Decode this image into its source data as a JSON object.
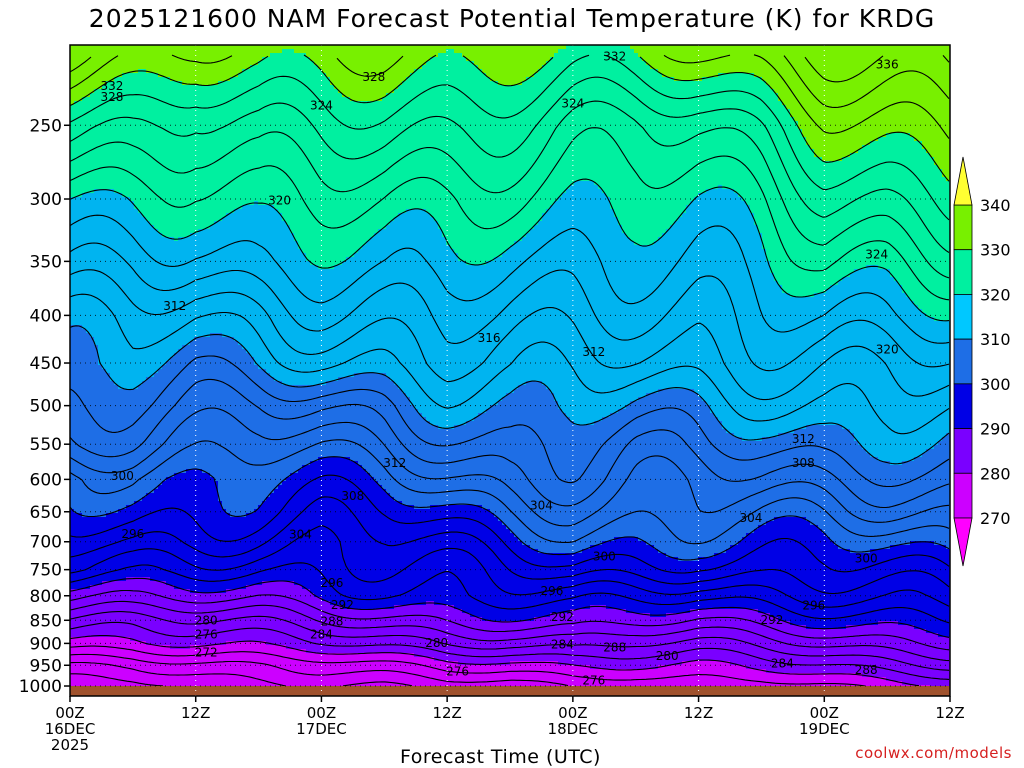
{
  "chart_data": {
    "type": "heatmap",
    "title": "2025121600 NAM Forecast Potential Temperature (K) for KRDG",
    "xlabel": "Forecast Time (UTC)",
    "ylabel": "",
    "credit": "coolwx.com/models",
    "x_ticks": [
      {
        "hour": 0,
        "lines": [
          "00Z",
          "16DEC",
          "2025"
        ]
      },
      {
        "hour": 12,
        "lines": [
          "12Z"
        ]
      },
      {
        "hour": 24,
        "lines": [
          "00Z",
          "17DEC"
        ]
      },
      {
        "hour": 36,
        "lines": [
          "12Z"
        ]
      },
      {
        "hour": 48,
        "lines": [
          "00Z",
          "18DEC"
        ]
      },
      {
        "hour": 60,
        "lines": [
          "12Z"
        ]
      },
      {
        "hour": 72,
        "lines": [
          "00Z",
          "19DEC"
        ]
      },
      {
        "hour": 84,
        "lines": [
          "12Z"
        ]
      }
    ],
    "xlim": [
      0,
      84
    ],
    "y_ticks": [
      250,
      300,
      350,
      400,
      450,
      500,
      550,
      600,
      650,
      700,
      750,
      800,
      850,
      900,
      950,
      1000
    ],
    "ylim": [
      1025,
      200
    ],
    "yscale": "log",
    "ytop_display": 205,
    "surface_pressure": 1000,
    "colorbar": {
      "levels": [
        270,
        280,
        290,
        300,
        310,
        320,
        330,
        340
      ],
      "colors": [
        "#ff00ff",
        "#c800ff",
        "#7800ff",
        "#0000e6",
        "#0a5ad2",
        "#00aaff",
        "#00c8e6",
        "#00eeaa",
        "#00ffaa",
        "#55ff55",
        "#b4ff00",
        "#ffff32"
      ],
      "bands": [
        {
          "from": 0,
          "to": 270,
          "color": "#ff00ff"
        },
        {
          "from": 270,
          "to": 280,
          "color": "#c800ff"
        },
        {
          "from": 280,
          "to": 290,
          "color": "#8000ff"
        },
        {
          "from": 290,
          "to": 300,
          "color": "#0000e6"
        },
        {
          "from": 300,
          "to": 310,
          "color": "#0a5ad2"
        },
        {
          "from": 310,
          "to": 320,
          "color": "#008cff"
        },
        {
          "from": 320,
          "to": 330,
          "color": "#00c8ff"
        },
        {
          "from": 330,
          "to": 340,
          "color": "#00ffaa"
        },
        {
          "from": 340,
          "to": 999,
          "color": "#78ff00"
        }
      ],
      "label_levels": [
        270,
        280,
        290,
        300,
        310,
        320,
        330,
        340
      ],
      "label_colors": [
        "#ff00ff",
        "#c800ff",
        "#8000ff",
        "#0000e6",
        "#0a5ad2",
        "#00aaff",
        "#00eeaa",
        "#78ff00",
        "#ffff32"
      ]
    },
    "surface_color": "#a0522d",
    "fill_bands": [
      {
        "theta": 270,
        "color": "#ff00ff"
      },
      {
        "theta": 280,
        "color": "#cc00ff"
      },
      {
        "theta": 290,
        "color": "#7a00ff"
      },
      {
        "theta": 300,
        "color": "#0000e6"
      },
      {
        "theta": 310,
        "color": "#1e6ee6"
      },
      {
        "theta": 320,
        "color": "#00b4f0"
      },
      {
        "theta": 330,
        "color": "#00f0a0"
      },
      {
        "theta": 340,
        "color": "#78f000"
      },
      {
        "theta": 999,
        "color": "#ffff32"
      }
    ],
    "profile_hours": [
      0,
      6,
      12,
      18,
      24,
      30,
      36,
      42,
      48,
      54,
      60,
      66,
      72,
      78,
      84
    ],
    "profile_pressures": [
      1000,
      950,
      900,
      850,
      800,
      750,
      700,
      650,
      600,
      550,
      500,
      450,
      400,
      350,
      300,
      250,
      205
    ],
    "theta_profiles": [
      [
        271,
        274,
        279,
        283,
        288,
        294,
        297,
        299,
        300,
        305,
        308,
        311,
        313,
        317,
        320,
        326,
        335
      ],
      [
        271,
        274,
        279,
        283,
        289,
        294,
        297,
        299,
        301,
        305,
        308,
        311,
        313,
        316,
        320,
        326,
        334
      ],
      [
        272,
        275,
        280,
        284,
        289,
        293,
        296,
        298,
        300,
        304,
        307,
        309,
        312,
        316,
        320,
        325,
        333
      ],
      [
        273,
        276,
        281,
        285,
        289,
        292,
        295,
        298,
        300,
        303,
        306,
        310,
        313,
        318,
        322,
        327,
        333
      ],
      [
        274,
        277,
        282,
        286,
        290,
        292,
        294,
        297,
        300,
        303,
        306,
        311,
        315,
        319,
        323,
        327,
        332
      ],
      [
        274,
        278,
        283,
        287,
        291,
        293,
        295,
        298,
        301,
        304,
        307,
        312,
        316,
        320,
        323,
        327,
        332
      ],
      [
        275,
        279,
        284,
        288,
        292,
        294,
        297,
        300,
        303,
        306,
        310,
        314,
        317,
        320,
        322,
        326,
        331
      ],
      [
        275,
        279,
        284,
        289,
        293,
        296,
        299,
        302,
        305,
        308,
        311,
        314,
        316,
        318,
        321,
        325,
        331
      ],
      [
        276,
        280,
        285,
        290,
        294,
        298,
        301,
        303,
        306,
        308,
        311,
        313,
        315,
        317,
        320,
        324,
        331
      ],
      [
        276,
        280,
        284,
        289,
        293,
        297,
        300,
        303,
        305,
        307,
        310,
        313,
        315,
        317,
        320,
        324,
        332
      ],
      [
        277,
        280,
        284,
        288,
        292,
        296,
        300,
        303,
        305,
        308,
        310,
        313,
        315,
        318,
        321,
        325,
        333
      ],
      [
        277,
        281,
        285,
        289,
        293,
        297,
        300,
        303,
        306,
        308,
        311,
        314,
        317,
        320,
        323,
        327,
        334
      ],
      [
        278,
        282,
        286,
        290,
        294,
        297,
        300,
        303,
        306,
        309,
        312,
        315,
        319,
        323,
        326,
        330,
        336
      ],
      [
        279,
        283,
        287,
        291,
        295,
        298,
        301,
        304,
        306,
        309,
        312,
        315,
        319,
        322,
        326,
        331,
        337
      ],
      [
        280,
        284,
        288,
        292,
        296,
        299,
        302,
        304,
        307,
        310,
        313,
        316,
        319,
        323,
        327,
        332,
        338
      ]
    ],
    "contour_labels": [
      {
        "text": "332",
        "hour": 4,
        "p": 227
      },
      {
        "text": "328",
        "hour": 4,
        "p": 233
      },
      {
        "text": "328",
        "hour": 29,
        "p": 222
      },
      {
        "text": "324",
        "hour": 24,
        "p": 238
      },
      {
        "text": "332",
        "hour": 52,
        "p": 211
      },
      {
        "text": "324",
        "hour": 48,
        "p": 237
      },
      {
        "text": "336",
        "hour": 78,
        "p": 215
      },
      {
        "text": "320",
        "hour": 20,
        "p": 301
      },
      {
        "text": "324",
        "hour": 77,
        "p": 344
      },
      {
        "text": "312",
        "hour": 10,
        "p": 391
      },
      {
        "text": "316",
        "hour": 40,
        "p": 423
      },
      {
        "text": "312",
        "hour": 50,
        "p": 438
      },
      {
        "text": "320",
        "hour": 78,
        "p": 435
      },
      {
        "text": "312",
        "hour": 31,
        "p": 576
      },
      {
        "text": "312",
        "hour": 70,
        "p": 543
      },
      {
        "text": "308",
        "hour": 70,
        "p": 576
      },
      {
        "text": "308",
        "hour": 27,
        "p": 625
      },
      {
        "text": "304",
        "hour": 45,
        "p": 640
      },
      {
        "text": "304",
        "hour": 65,
        "p": 660
      },
      {
        "text": "300",
        "hour": 5,
        "p": 595
      },
      {
        "text": "296",
        "hour": 6,
        "p": 687
      },
      {
        "text": "304",
        "hour": 22,
        "p": 688
      },
      {
        "text": "300",
        "hour": 51,
        "p": 726
      },
      {
        "text": "300",
        "hour": 76,
        "p": 730
      },
      {
        "text": "296",
        "hour": 25,
        "p": 775
      },
      {
        "text": "292",
        "hour": 26,
        "p": 818
      },
      {
        "text": "296",
        "hour": 46,
        "p": 791
      },
      {
        "text": "292",
        "hour": 47,
        "p": 843
      },
      {
        "text": "296",
        "hour": 71,
        "p": 820
      },
      {
        "text": "292",
        "hour": 67,
        "p": 849
      },
      {
        "text": "280",
        "hour": 13,
        "p": 850
      },
      {
        "text": "288",
        "hour": 25,
        "p": 853
      },
      {
        "text": "276",
        "hour": 13,
        "p": 880
      },
      {
        "text": "284",
        "hour": 24,
        "p": 880
      },
      {
        "text": "272",
        "hour": 13,
        "p": 920
      },
      {
        "text": "280",
        "hour": 35,
        "p": 899
      },
      {
        "text": "284",
        "hour": 47,
        "p": 902
      },
      {
        "text": "288",
        "hour": 52,
        "p": 909
      },
      {
        "text": "280",
        "hour": 57,
        "p": 929
      },
      {
        "text": "284",
        "hour": 68,
        "p": 946
      },
      {
        "text": "288",
        "hour": 76,
        "p": 961
      },
      {
        "text": "276",
        "hour": 37,
        "p": 965
      },
      {
        "text": "276",
        "hour": 50,
        "p": 987
      }
    ]
  }
}
